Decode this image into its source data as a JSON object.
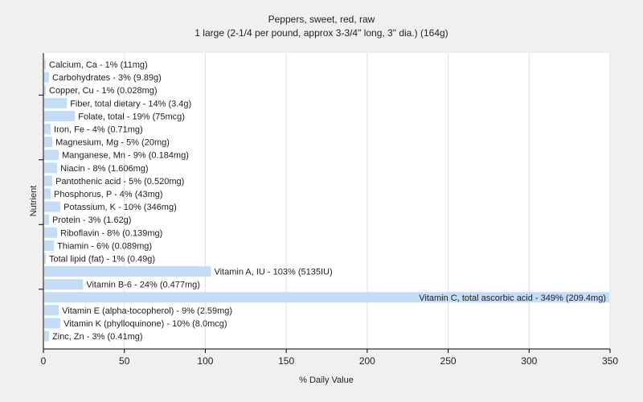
{
  "chart_data": {
    "type": "bar",
    "orientation": "horizontal",
    "title": "Peppers, sweet, red, raw",
    "subtitle": "1 large (2-1/4 per pound, approx 3-3/4\" long, 3\" dia.) (164g)",
    "xlabel": "% Daily Value",
    "ylabel": "Nutrient",
    "xlim": [
      0,
      350
    ],
    "xticks": [
      0,
      50,
      100,
      150,
      200,
      250,
      300,
      350
    ],
    "grid": true,
    "bar_color": "#c4dcf5",
    "categories": [
      "Calcium, Ca - 1% (11mg)",
      "Carbohydrates - 3% (9.89g)",
      "Copper, Cu - 1% (0.028mg)",
      "Fiber, total dietary - 14% (3.4g)",
      "Folate, total - 19% (75mcg)",
      "Iron, Fe - 4% (0.71mg)",
      "Magnesium, Mg - 5% (20mg)",
      "Manganese, Mn - 9% (0.184mg)",
      "Niacin - 8% (1.606mg)",
      "Pantothenic acid - 5% (0.520mg)",
      "Phosphorus, P - 4% (43mg)",
      "Potassium, K - 10% (346mg)",
      "Protein - 3% (1.62g)",
      "Riboflavin - 8% (0.139mg)",
      "Thiamin - 6% (0.089mg)",
      "Total lipid (fat) - 1% (0.49g)",
      "Vitamin A, IU - 103% (5135IU)",
      "Vitamin B-6 - 24% (0.477mg)",
      "Vitamin C, total ascorbic acid - 349% (209.4mg)",
      "Vitamin E (alpha-tocopherol) - 9% (2.59mg)",
      "Vitamin K (phylloquinone) - 10% (8.0mcg)",
      "Zinc, Zn - 3% (0.41mg)"
    ],
    "values": [
      1,
      3,
      1,
      14,
      19,
      4,
      5,
      9,
      8,
      5,
      4,
      10,
      3,
      8,
      6,
      1,
      103,
      24,
      349,
      9,
      10,
      3
    ]
  }
}
